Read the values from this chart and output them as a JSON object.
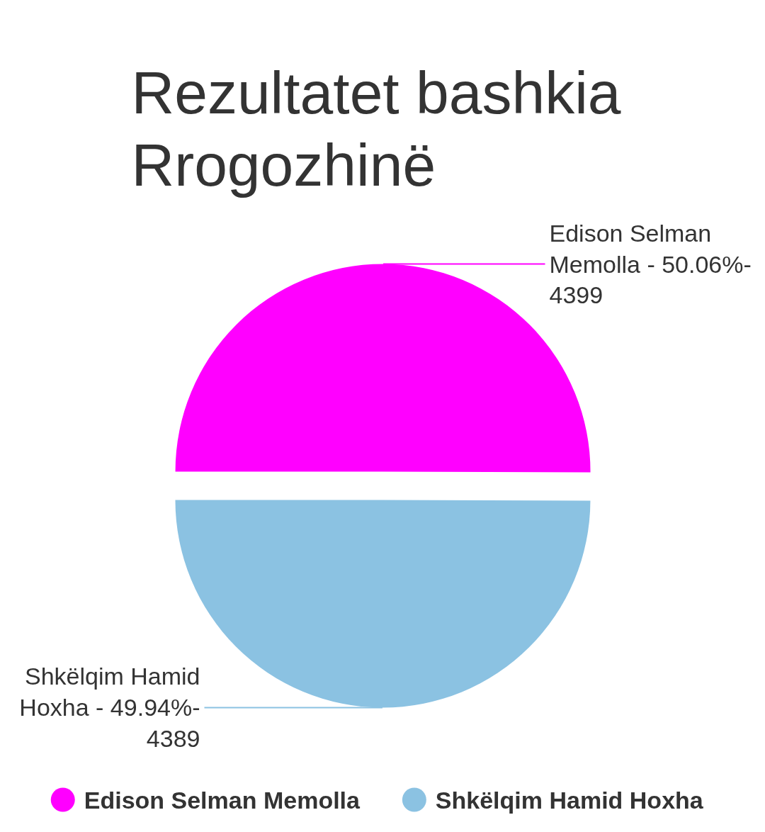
{
  "chart_data": {
    "type": "pie",
    "title": "Rezultatet bashkia Rrogozhinë",
    "categories": [
      "Edison Selman Memolla",
      "Shkëlqim Hamid Hoxha"
    ],
    "values": [
      4399,
      4389
    ],
    "colors": [
      "#ff00ff",
      "#8bc2e2"
    ],
    "value_labels": [
      "4399",
      "4389"
    ],
    "annotations": [
      "Edison Selman Memolla - 50.06%-",
      "Shkëlqim Hamid Hoxha - 49.94%-"
    ],
    "legend": "bottom"
  }
}
